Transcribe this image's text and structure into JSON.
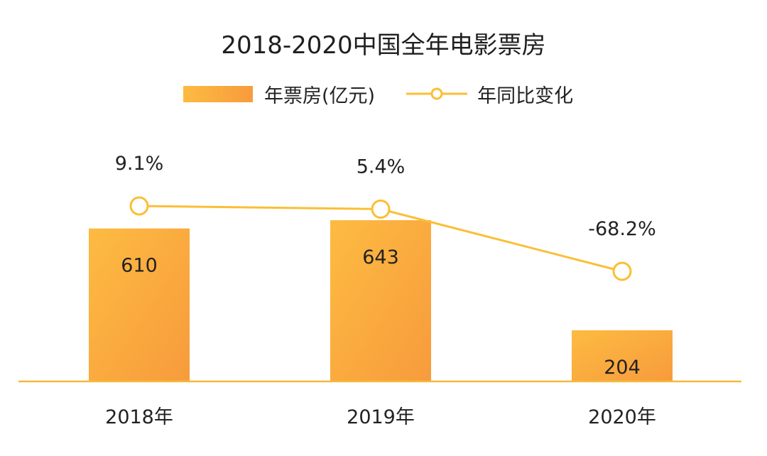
{
  "chart_data": {
    "type": "bar",
    "title": "2018-2020中国全年电影票房",
    "categories": [
      "2018年",
      "2019年",
      "2020年"
    ],
    "series": [
      {
        "name": "年票房(亿元)",
        "type": "bar",
        "values": [
          610,
          643,
          204
        ],
        "labels": [
          "610",
          "643",
          "204"
        ]
      },
      {
        "name": "年同比变化",
        "type": "line",
        "values": [
          9.1,
          5.4,
          -68.2
        ],
        "labels": [
          "9.1%",
          "5.4%",
          "-68.2%"
        ]
      }
    ],
    "legend_position": "top-center",
    "grid": false,
    "colors": {
      "bar_start": "#fdbb42",
      "bar_end": "#f79b3c",
      "line": "#fbbf35",
      "axis": "#f4b93e"
    }
  }
}
